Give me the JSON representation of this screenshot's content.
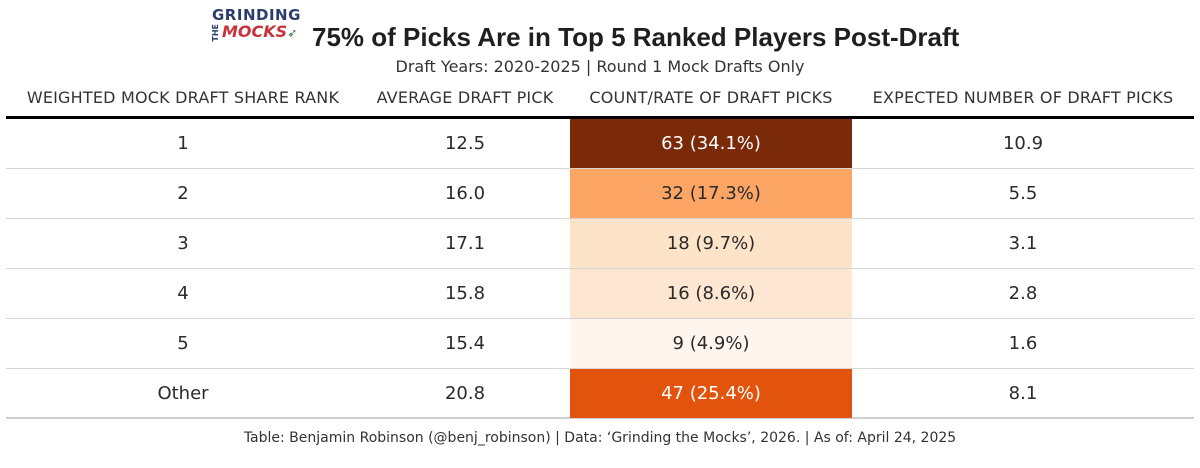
{
  "logo": {
    "line1": "GRINDING",
    "line2": "THE",
    "line3": "MOCKS"
  },
  "header": {
    "title": "75% of Picks Are in Top 5 Ranked Players Post-Draft",
    "subtitle": "Draft Years: 2020-2025 | Round 1 Mock Drafts Only"
  },
  "colors": {
    "rank1": "#7a2a08",
    "rank2": "#fca564",
    "rank3": "#fde3c8",
    "rank4": "#fde7d2",
    "rank5": "#fef6ee",
    "other": "#e2540e"
  },
  "chart_data": {
    "type": "table",
    "title": "75% of Picks Are in Top 5 Ranked Players Post-Draft",
    "subtitle": "Draft Years: 2020-2025 | Round 1 Mock Drafts Only",
    "columns": [
      "WEIGHTED MOCK DRAFT SHARE RANK",
      "AVERAGE DRAFT PICK",
      "COUNT/RATE OF DRAFT PICKS",
      "EXPECTED NUMBER OF DRAFT PICKS"
    ],
    "rows": [
      {
        "rank": "1",
        "avg_pick": "12.5",
        "count_rate": "63 (34.1%)",
        "expected": "10.9",
        "count": 63,
        "rate": 34.1
      },
      {
        "rank": "2",
        "avg_pick": "16.0",
        "count_rate": "32 (17.3%)",
        "expected": "5.5",
        "count": 32,
        "rate": 17.3
      },
      {
        "rank": "3",
        "avg_pick": "17.1",
        "count_rate": "18 (9.7%)",
        "expected": "3.1",
        "count": 18,
        "rate": 9.7
      },
      {
        "rank": "4",
        "avg_pick": "15.8",
        "count_rate": "16 (8.6%)",
        "expected": "2.8",
        "count": 16,
        "rate": 8.6
      },
      {
        "rank": "5",
        "avg_pick": "15.4",
        "count_rate": "9 (4.9%)",
        "expected": "1.6",
        "count": 9,
        "rate": 4.9
      },
      {
        "rank": "Other",
        "avg_pick": "20.8",
        "count_rate": "47 (25.4%)",
        "expected": "8.1",
        "count": 47,
        "rate": 25.4
      }
    ]
  },
  "footer": {
    "caption": "Table: Benjamin Robinson (@benj_robinson) | Data: ‘Grinding the Mocks’, 2026. | As of: April 24, 2025"
  }
}
